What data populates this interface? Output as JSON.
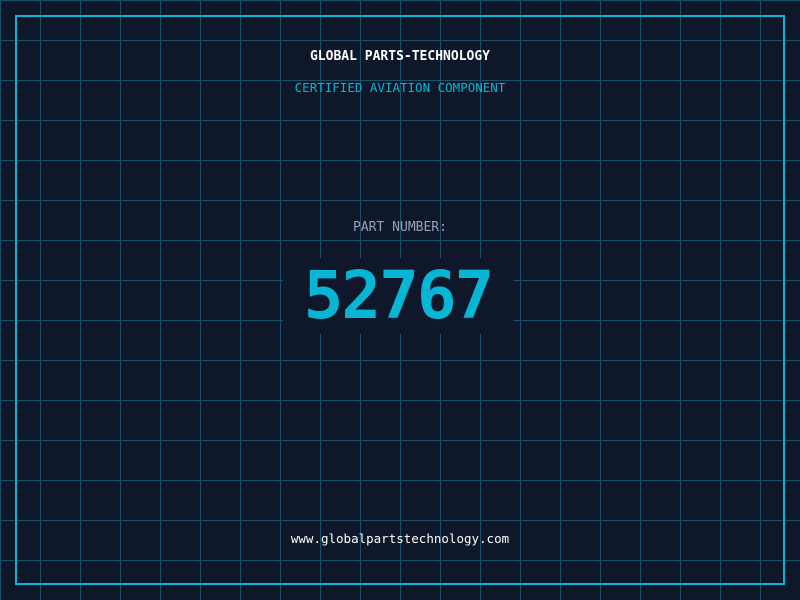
{
  "header": {
    "title": "GLOBAL PARTS-TECHNOLOGY",
    "subtitle": "CERTIFIED AVIATION COMPONENT"
  },
  "part": {
    "label": "PART NUMBER:",
    "number": "52767"
  },
  "footer": {
    "url": "www.globalpartstechnology.com"
  },
  "colors": {
    "accent": "#06b6d4",
    "background": "#0f172a",
    "grid": "#155468"
  }
}
